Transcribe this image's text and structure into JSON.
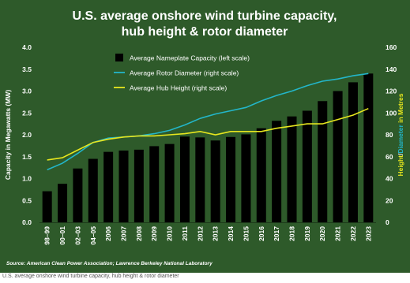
{
  "chart_data": {
    "type": "bar+line",
    "title_line1": "U.S. average onshore wind turbine capacity,",
    "title_line2": "hub height & rotor diameter",
    "categories": [
      "98–99",
      "00–01",
      "02–03",
      "04–05",
      "2006",
      "2007",
      "2008",
      "2009",
      "2010",
      "2011",
      "2012",
      "2013",
      "2014",
      "2015",
      "2016",
      "2017",
      "2018",
      "2019",
      "2020",
      "2021",
      "2022",
      "2023"
    ],
    "left_axis": {
      "label": "Capacity in Megawatts (MW)",
      "ticks": [
        "0.0",
        "0.5",
        "1.0",
        "1.5",
        "2.0",
        "2.5",
        "3.0",
        "3.5",
        "4.0"
      ],
      "ylim": [
        0,
        4
      ]
    },
    "right_axis": {
      "label_part1": "Height",
      "label_sep": "/",
      "label_part2": "Diameter",
      "label_part3": " in Metres",
      "ticks": [
        "0",
        "20",
        "40",
        "60",
        "80",
        "100",
        "120",
        "140",
        "160"
      ],
      "ylim": [
        0,
        160
      ]
    },
    "series": [
      {
        "name": "Average Nameplate Capacity (left scale)",
        "type": "bar",
        "axis": "left",
        "color": "#000000",
        "values": [
          0.71,
          0.88,
          1.23,
          1.45,
          1.61,
          1.64,
          1.66,
          1.74,
          1.79,
          1.96,
          1.94,
          1.87,
          1.95,
          2.01,
          2.15,
          2.32,
          2.42,
          2.55,
          2.77,
          3.0,
          3.2,
          3.4
        ]
      },
      {
        "name": "Average Rotor Diameter (right scale)",
        "type": "line",
        "axis": "right",
        "color": "#23b6c9",
        "values": [
          48,
          54,
          63,
          73,
          77,
          78,
          79,
          81,
          84,
          89,
          95,
          99,
          102,
          105,
          111,
          116,
          120,
          125,
          129,
          131,
          134,
          136
        ]
      },
      {
        "name": "Average Hub Height (right scale)",
        "type": "line",
        "axis": "right",
        "color": "#e6e61e",
        "values": [
          57,
          59,
          66,
          73,
          76,
          78,
          79,
          79,
          80,
          81,
          83,
          80,
          83,
          83,
          83,
          86,
          88,
          90,
          90,
          94,
          98,
          104
        ]
      }
    ],
    "source": "Source:  American Clean Power Association; Lawrence Berkeley National Laboratory"
  },
  "caption": "U.S. average onshore wind turbine capacity, hub height & rotor diameter",
  "colors": {
    "background": "#2e5a2a",
    "text": "#ffffff",
    "rotor": "#23b6c9",
    "hub": "#e6e61e",
    "bars": "#000000"
  }
}
